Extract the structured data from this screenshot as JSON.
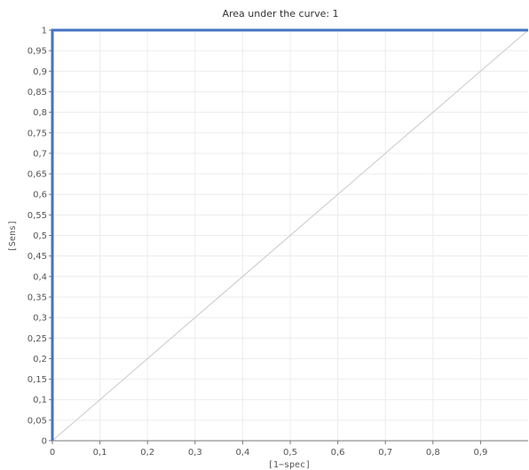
{
  "chart_data": {
    "type": "line",
    "title": "Area under the curve: 1",
    "xlabel": "[1−spec]",
    "ylabel": "[Sens]",
    "xlim": [
      0,
      1
    ],
    "ylim": [
      0,
      1
    ],
    "grid": true,
    "x_ticks": [
      "0",
      "0,1",
      "0,2",
      "0,3",
      "0,4",
      "0,5",
      "0,6",
      "0,7",
      "0,8",
      "0,9"
    ],
    "y_ticks": [
      "0",
      "0,05",
      "0,1",
      "0,15",
      "0,2",
      "0,25",
      "0,3",
      "0,35",
      "0,4",
      "0,45",
      "0,5",
      "0,55",
      "0,6",
      "0,65",
      "0,7",
      "0,75",
      "0,8",
      "0,85",
      "0,9",
      "0,95",
      "1"
    ],
    "series": [
      {
        "x": [
          0,
          0,
          1
        ],
        "y": [
          0,
          1,
          1
        ],
        "color": "#4472c4"
      },
      {
        "x": [
          0,
          1
        ],
        "y": [
          0,
          1
        ],
        "color": "#c8c8c8"
      }
    ]
  }
}
